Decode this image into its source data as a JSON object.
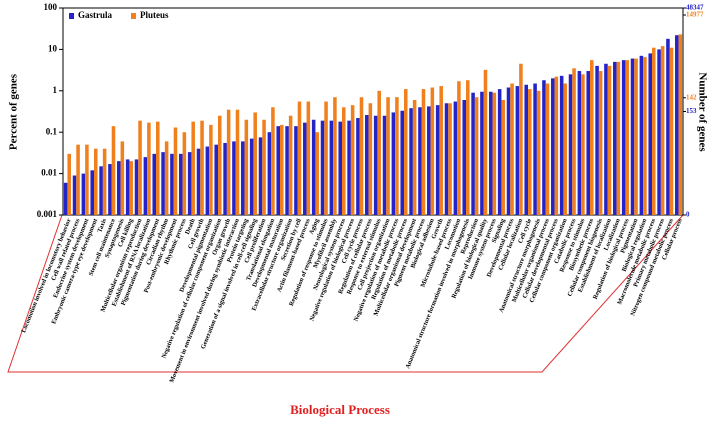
{
  "chart_data": {
    "type": "bar",
    "y_label": "Percent of genes",
    "y2_label": "Number of genes",
    "x_label": "Biological Process",
    "log_scale": true,
    "legend": "top-left",
    "ylim": [
      0.001,
      100
    ],
    "yticks": [
      0.001,
      0.01,
      0.1,
      1,
      10,
      100
    ],
    "y2ticks": [
      {
        "value": 48347,
        "series": 0
      },
      {
        "value": 14977,
        "series": 1
      },
      {
        "value": 153,
        "series": 0
      },
      {
        "value": 142,
        "series": 1
      },
      {
        "value": 0,
        "series": 0
      }
    ],
    "categories": [
      "Locomotion involved in locomotory behavior",
      "Cell wall related process",
      "Endocrine system development",
      "Embryonic camera-type eye development",
      "Taxis",
      "Stem cell maintenance",
      "Synaptogenesis",
      "Cell killing",
      "Multicellular organism reproduction",
      "Establishment of RNA localization",
      "Pigmentation during development",
      "Circadian rhythm",
      "Post-embryonic development",
      "Rhythmic process",
      "Death",
      "Cell growth",
      "Developmental pigmentation",
      "Negative regulation of cellular component organization",
      "Organ growth",
      "Movement in environment involved during symbiotic interaction",
      "Protein targeting",
      "Generation of a signal involved in cell-cell signaling",
      "Cell proliferation",
      "Translational elongation",
      "Developmental maturation",
      "Extracellular structure organization",
      "Secretion by cell",
      "Actin filament-based process",
      "Aging",
      "Regulation of response to stimulus",
      "Myofibril assembly",
      "Neurological system process",
      "Negative regulation of biological process",
      "Cell cycle process",
      "Regulation of cellular process",
      "Response to external stimulus",
      "Cell projection organization",
      "Negative regulation of metabolic process",
      "Regulation of metabolic process",
      "Multicellular organismal development",
      "Pigment metabolic process",
      "Biological adhesion",
      "Growth",
      "Microtubule-based process",
      "Locomotion",
      "Anatomical structure formation involved in morphogenesis",
      "Reproduction",
      "Regulation of biological quality",
      "Immune system process",
      "Signaling",
      "Developmental process",
      "Cellular localization",
      "Cell cycle",
      "Anatomical structure morphogenesis",
      "Multicellular organismal process",
      "Cellular developmental process",
      "Cellular component organization",
      "Catabolic process",
      "Response to stimulus",
      "Biosynthetic process",
      "Cellular component biogenesis",
      "Establishment of localization",
      "Localization",
      "Regulation of biological process",
      "Pigmentation",
      "Biological regulation",
      "Macromolecule metabolic process",
      "Primary metabolic process",
      "Nitrogen compound metabolic process",
      "Cellular process"
    ],
    "series": [
      {
        "name": "Gastrula",
        "color": "#2323c8",
        "values": [
          0.006,
          0.009,
          0.01,
          0.012,
          0.015,
          0.017,
          0.02,
          0.022,
          0.022,
          0.025,
          0.03,
          0.033,
          0.03,
          0.03,
          0.033,
          0.04,
          0.045,
          0.05,
          0.055,
          0.06,
          0.06,
          0.07,
          0.075,
          0.1,
          0.14,
          0.14,
          0.14,
          0.17,
          0.2,
          0.19,
          0.19,
          0.18,
          0.19,
          0.22,
          0.26,
          0.25,
          0.25,
          0.3,
          0.33,
          0.38,
          0.4,
          0.42,
          0.45,
          0.5,
          0.55,
          0.6,
          0.9,
          0.95,
          0.95,
          1.1,
          1.2,
          1.3,
          1.4,
          1.5,
          1.8,
          2,
          2.3,
          2.5,
          3,
          3,
          4,
          4.5,
          5,
          5.5,
          6,
          7,
          8,
          10,
          18,
          22
        ]
      },
      {
        "name": "Pluteus",
        "color": "#f0801e",
        "values": [
          0.03,
          0.05,
          0.05,
          0.04,
          0.04,
          0.14,
          0.06,
          0.02,
          0.19,
          0.17,
          0.18,
          0.06,
          0.13,
          0.1,
          0.18,
          0.19,
          0.15,
          0.25,
          0.35,
          0.35,
          0.2,
          0.3,
          0.2,
          0.4,
          0.15,
          0.25,
          0.55,
          0.55,
          0.1,
          0.55,
          0.7,
          0.4,
          0.45,
          0.7,
          0.5,
          1.0,
          0.7,
          0.7,
          1.1,
          0.6,
          1.1,
          1.2,
          1.3,
          0.5,
          1.7,
          1.8,
          0.7,
          3.2,
          0.9,
          0.6,
          1.5,
          4.5,
          1.1,
          1.0,
          1.5,
          2.2,
          1.5,
          3.5,
          2.5,
          5.5,
          3,
          4,
          5,
          5.5,
          6,
          6.5,
          11,
          12,
          11,
          23
        ]
      }
    ]
  }
}
